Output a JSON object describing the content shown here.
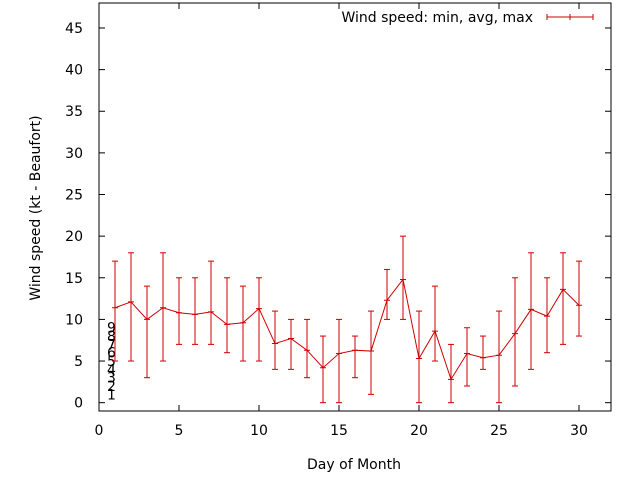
{
  "chart_data": {
    "type": "line",
    "title": "",
    "xlabel": "Day of Month",
    "ylabel": "Wind speed (kt - Beaufort)",
    "xlim": [
      0,
      32
    ],
    "ylim": [
      -1,
      48
    ],
    "x_ticks": [
      0,
      5,
      10,
      15,
      20,
      25,
      30
    ],
    "y_ticks": [
      0,
      5,
      10,
      15,
      20,
      25,
      30,
      35,
      40,
      45
    ],
    "grid": false,
    "legend": {
      "placement": "top-right",
      "entries": [
        "Wind speed: min, avg, max"
      ]
    },
    "beaufort_labels": [
      {
        "value": 1,
        "label": "1"
      },
      {
        "value": 2,
        "label": "2"
      },
      {
        "value": 3,
        "label": "3"
      },
      {
        "value": 4,
        "label": "4"
      },
      {
        "value": 5,
        "label": "5"
      },
      {
        "value": 6,
        "label": "6"
      },
      {
        "value": 7,
        "label": "7"
      },
      {
        "value": 8,
        "label": "8"
      },
      {
        "value": 9,
        "label": "9"
      }
    ],
    "series": [
      {
        "name": "Wind speed: min, avg, max",
        "color": "#cc0000",
        "x": [
          1,
          2,
          3,
          4,
          5,
          6,
          7,
          8,
          9,
          10,
          11,
          12,
          13,
          14,
          15,
          16,
          17,
          18,
          19,
          20,
          21,
          22,
          23,
          24,
          25,
          26,
          27,
          28,
          29,
          30
        ],
        "min": [
          5,
          5,
          3,
          5,
          7,
          7,
          7,
          6,
          5,
          5,
          4,
          4,
          3,
          0,
          0,
          3,
          1,
          10,
          10,
          0,
          5,
          0,
          2,
          4,
          0,
          2,
          4,
          6,
          7,
          8
        ],
        "avg": [
          11.4,
          12.1,
          10.0,
          11.4,
          10.8,
          10.6,
          10.9,
          9.4,
          9.6,
          11.3,
          7.1,
          7.7,
          6.3,
          4.2,
          5.9,
          6.3,
          6.2,
          12.3,
          14.8,
          5.3,
          8.6,
          2.8,
          5.9,
          5.4,
          5.7,
          8.3,
          11.2,
          10.4,
          13.6,
          11.7
        ],
        "max": [
          17,
          18,
          14,
          18,
          15,
          15,
          17,
          15,
          14,
          15,
          11,
          10,
          10,
          8,
          10,
          8,
          11,
          16,
          20,
          11,
          14,
          7,
          9,
          8,
          11,
          15,
          18,
          15,
          18,
          17
        ]
      }
    ]
  }
}
